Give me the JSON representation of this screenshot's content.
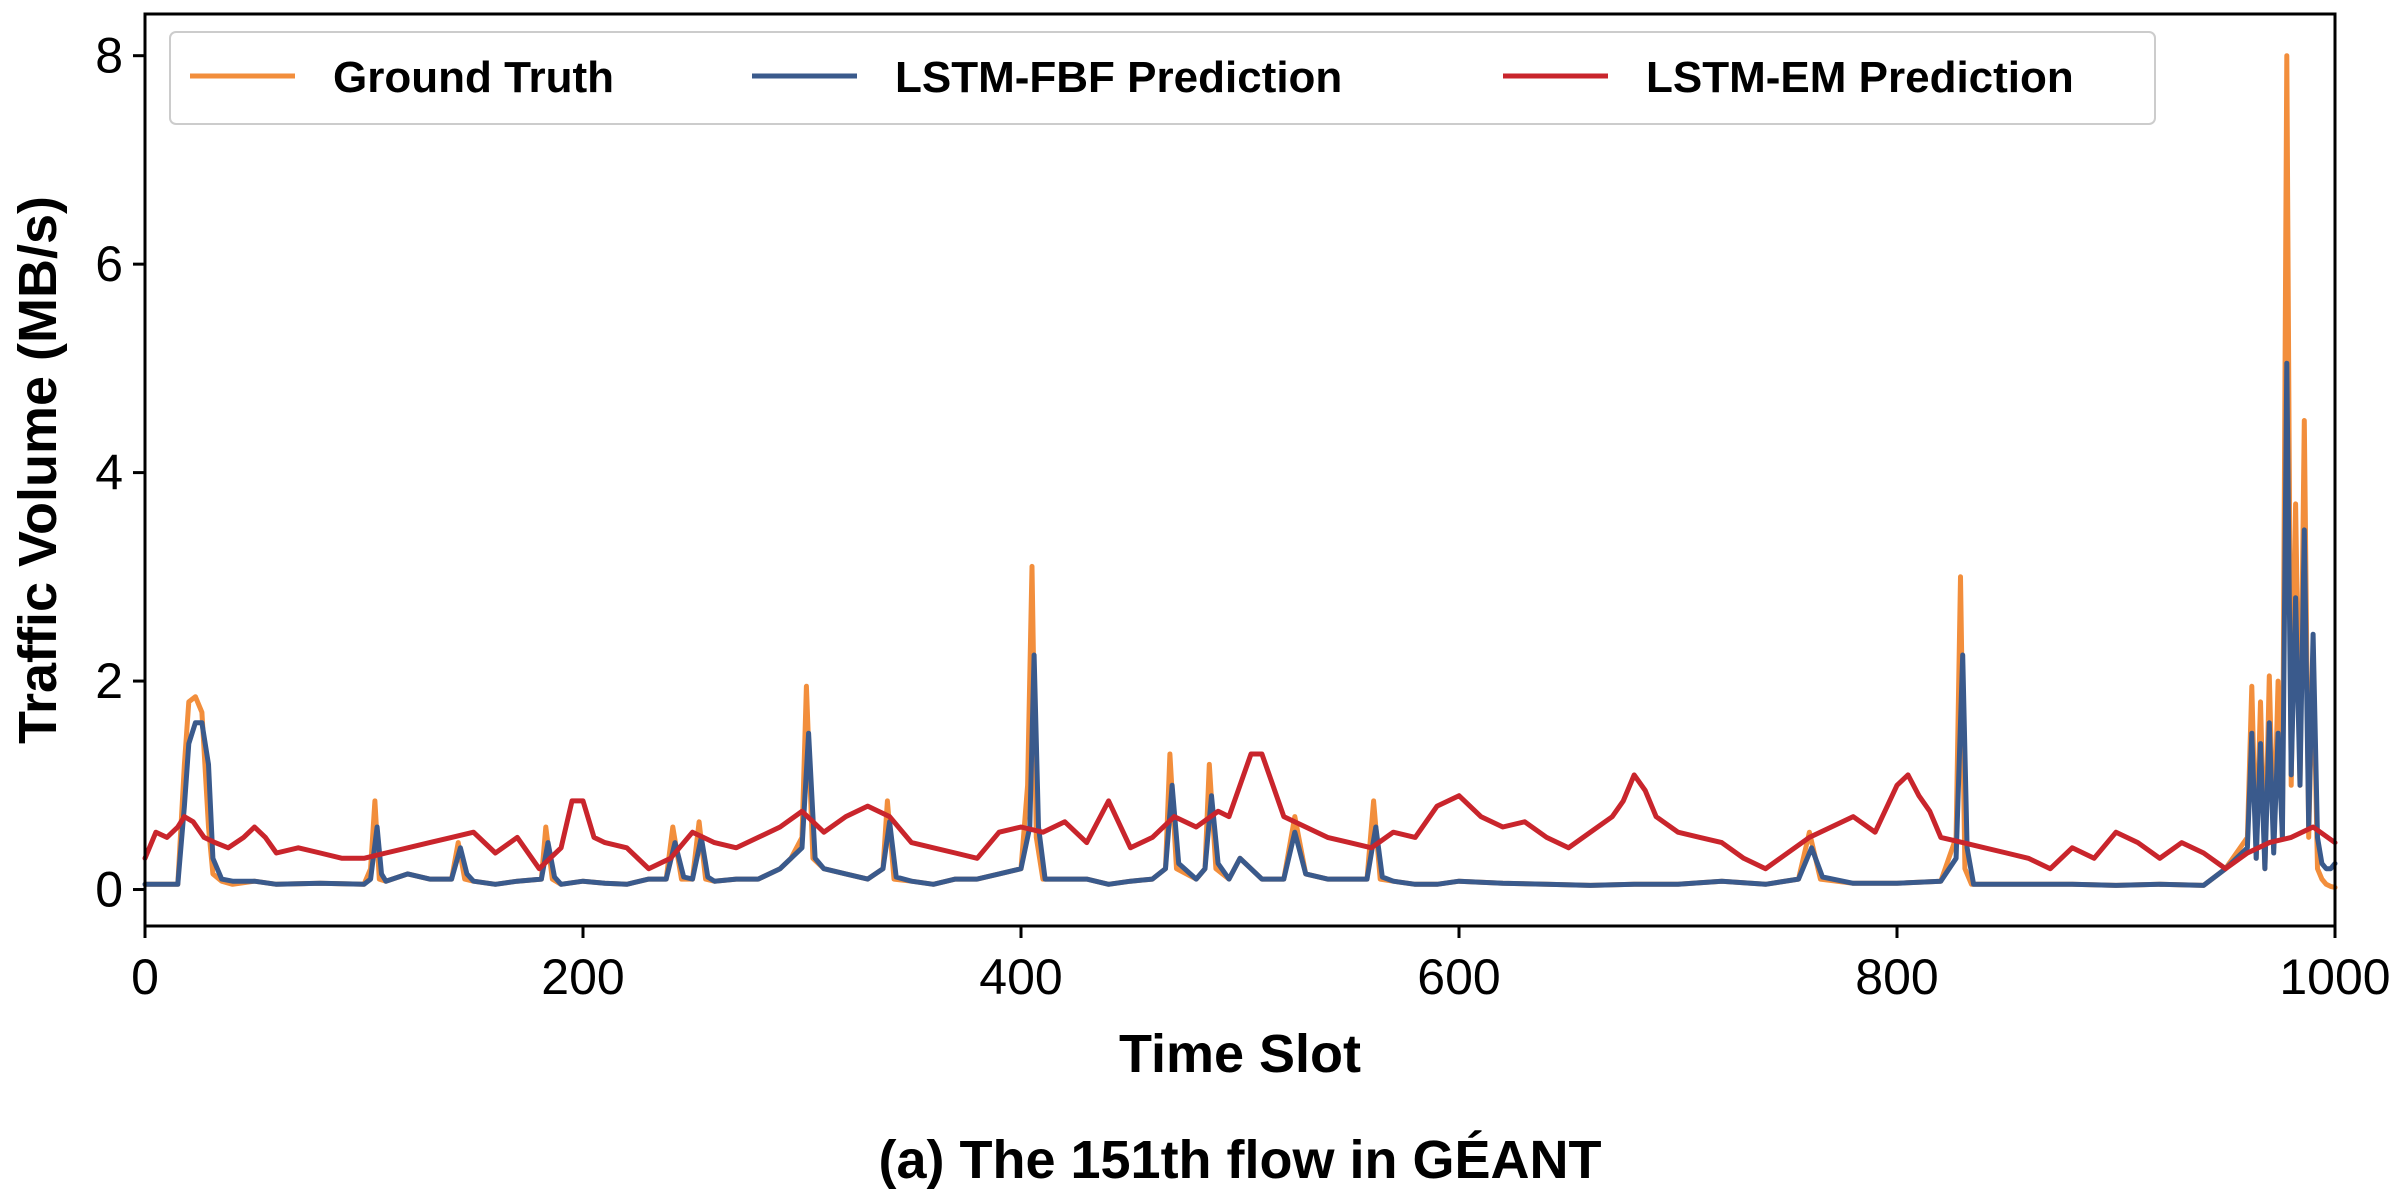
{
  "caption": "(a) The 151th flow in GÉANT",
  "chart_data": {
    "type": "line",
    "xlabel": "Time Slot",
    "ylabel": "Traffic Volume (MB/s)",
    "xlim": [
      0,
      1000
    ],
    "ylim": [
      -0.35,
      8.4
    ],
    "xticks": [
      "0",
      "200",
      "400",
      "600",
      "800",
      "1000"
    ],
    "yticks": [
      "0",
      "2",
      "4",
      "6",
      "8"
    ],
    "grid": false,
    "legend_position": "top",
    "series": [
      {
        "name": "Ground Truth",
        "color": "#f28e3c",
        "x": [
          0,
          15,
          18,
          20,
          23,
          26,
          29,
          31,
          35,
          40,
          50,
          60,
          80,
          100,
          103,
          105,
          107,
          110,
          120,
          130,
          140,
          143,
          146,
          150,
          160,
          170,
          181,
          183,
          186,
          190,
          200,
          210,
          220,
          230,
          238,
          241,
          245,
          250,
          253,
          256,
          260,
          270,
          280,
          290,
          295,
          300,
          302,
          305,
          310,
          320,
          330,
          337,
          339,
          342,
          350,
          360,
          370,
          380,
          390,
          400,
          403,
          405,
          407,
          410,
          415,
          420,
          430,
          440,
          450,
          460,
          466,
          468,
          471,
          480,
          484,
          486,
          489,
          495,
          500,
          510,
          520,
          525,
          530,
          540,
          558,
          561,
          564,
          570,
          580,
          590,
          600,
          620,
          640,
          660,
          680,
          700,
          720,
          740,
          755,
          760,
          765,
          780,
          800,
          820,
          827,
          829,
          831,
          834,
          840,
          850,
          860,
          880,
          900,
          920,
          940,
          950,
          960,
          962,
          964,
          966,
          968,
          970,
          972,
          974,
          976,
          978,
          980,
          982,
          984,
          986,
          988,
          990,
          992,
          994,
          996,
          998,
          1000
        ],
        "y": [
          0.05,
          0.05,
          1.2,
          1.8,
          1.85,
          1.7,
          0.6,
          0.15,
          0.08,
          0.05,
          0.08,
          0.05,
          0.06,
          0.05,
          0.2,
          0.85,
          0.1,
          0.08,
          0.15,
          0.1,
          0.1,
          0.45,
          0.1,
          0.08,
          0.05,
          0.08,
          0.1,
          0.6,
          0.1,
          0.05,
          0.08,
          0.06,
          0.05,
          0.1,
          0.1,
          0.6,
          0.1,
          0.1,
          0.65,
          0.1,
          0.08,
          0.1,
          0.1,
          0.2,
          0.3,
          0.5,
          1.95,
          0.3,
          0.2,
          0.15,
          0.1,
          0.2,
          0.85,
          0.1,
          0.08,
          0.05,
          0.1,
          0.1,
          0.15,
          0.2,
          1.0,
          3.1,
          0.5,
          0.1,
          0.1,
          0.1,
          0.1,
          0.05,
          0.08,
          0.1,
          0.2,
          1.3,
          0.2,
          0.1,
          0.2,
          1.2,
          0.2,
          0.1,
          0.3,
          0.1,
          0.1,
          0.7,
          0.15,
          0.1,
          0.1,
          0.85,
          0.1,
          0.08,
          0.05,
          0.05,
          0.08,
          0.06,
          0.05,
          0.04,
          0.05,
          0.05,
          0.08,
          0.05,
          0.1,
          0.55,
          0.1,
          0.06,
          0.06,
          0.08,
          0.5,
          3.0,
          0.2,
          0.05,
          0.05,
          0.05,
          0.05,
          0.05,
          0.04,
          0.05,
          0.04,
          0.2,
          0.5,
          1.95,
          0.3,
          1.8,
          0.2,
          2.05,
          0.4,
          2.0,
          0.5,
          8.0,
          1.0,
          3.7,
          1.0,
          4.5,
          0.5,
          2.3,
          0.2,
          0.1,
          0.05,
          0.03,
          0.02
        ]
      },
      {
        "name": "LSTM-FBF Prediction",
        "color": "#3a5a8c",
        "x": [
          0,
          15,
          18,
          20,
          23,
          26,
          29,
          31,
          35,
          40,
          50,
          60,
          80,
          100,
          103,
          106,
          108,
          110,
          120,
          130,
          140,
          144,
          147,
          150,
          160,
          170,
          181,
          184,
          187,
          190,
          200,
          210,
          220,
          230,
          238,
          242,
          246,
          250,
          254,
          257,
          260,
          270,
          280,
          290,
          295,
          300,
          303,
          306,
          310,
          320,
          330,
          337,
          340,
          343,
          350,
          360,
          370,
          380,
          390,
          400,
          404,
          406,
          408,
          411,
          415,
          420,
          430,
          440,
          450,
          460,
          466,
          469,
          472,
          480,
          484,
          487,
          490,
          495,
          500,
          510,
          520,
          525,
          530,
          540,
          558,
          562,
          565,
          570,
          580,
          590,
          600,
          620,
          640,
          660,
          680,
          700,
          720,
          740,
          755,
          761,
          766,
          780,
          800,
          820,
          827,
          830,
          832,
          835,
          840,
          850,
          860,
          880,
          900,
          920,
          940,
          950,
          960,
          962,
          964,
          966,
          968,
          970,
          972,
          974,
          976,
          978,
          980,
          982,
          984,
          986,
          988,
          990,
          992,
          994,
          996,
          998,
          1000
        ],
        "y": [
          0.05,
          0.05,
          0.8,
          1.4,
          1.6,
          1.6,
          1.2,
          0.3,
          0.1,
          0.08,
          0.08,
          0.05,
          0.06,
          0.05,
          0.1,
          0.6,
          0.15,
          0.08,
          0.15,
          0.1,
          0.1,
          0.4,
          0.15,
          0.08,
          0.05,
          0.08,
          0.1,
          0.45,
          0.12,
          0.05,
          0.08,
          0.06,
          0.05,
          0.1,
          0.1,
          0.45,
          0.12,
          0.1,
          0.5,
          0.12,
          0.08,
          0.1,
          0.1,
          0.2,
          0.3,
          0.4,
          1.5,
          0.3,
          0.2,
          0.15,
          0.1,
          0.2,
          0.65,
          0.12,
          0.08,
          0.05,
          0.1,
          0.1,
          0.15,
          0.2,
          0.6,
          2.25,
          0.6,
          0.1,
          0.1,
          0.1,
          0.1,
          0.05,
          0.08,
          0.1,
          0.2,
          1.0,
          0.25,
          0.1,
          0.2,
          0.9,
          0.25,
          0.1,
          0.3,
          0.1,
          0.1,
          0.55,
          0.15,
          0.1,
          0.1,
          0.6,
          0.12,
          0.08,
          0.05,
          0.05,
          0.08,
          0.06,
          0.05,
          0.04,
          0.05,
          0.05,
          0.08,
          0.05,
          0.1,
          0.4,
          0.12,
          0.06,
          0.06,
          0.08,
          0.3,
          2.25,
          0.4,
          0.05,
          0.05,
          0.05,
          0.05,
          0.05,
          0.04,
          0.05,
          0.04,
          0.2,
          0.4,
          1.5,
          0.3,
          1.4,
          0.2,
          1.6,
          0.35,
          1.5,
          0.5,
          5.05,
          1.1,
          2.8,
          1.0,
          3.45,
          0.6,
          2.45,
          0.5,
          0.25,
          0.2,
          0.2,
          0.25
        ]
      },
      {
        "name": "LSTM-EM Prediction",
        "color": "#c9252c",
        "x": [
          0,
          5,
          10,
          15,
          18,
          22,
          27,
          32,
          38,
          45,
          50,
          55,
          60,
          70,
          80,
          90,
          100,
          110,
          120,
          130,
          140,
          150,
          160,
          170,
          180,
          190,
          195,
          200,
          205,
          210,
          220,
          230,
          240,
          250,
          260,
          270,
          280,
          290,
          300,
          310,
          320,
          330,
          340,
          350,
          360,
          370,
          380,
          390,
          400,
          410,
          420,
          430,
          440,
          450,
          460,
          470,
          480,
          490,
          495,
          500,
          505,
          510,
          515,
          520,
          530,
          540,
          550,
          560,
          570,
          580,
          590,
          600,
          610,
          620,
          630,
          640,
          650,
          660,
          670,
          675,
          680,
          685,
          690,
          700,
          710,
          720,
          730,
          740,
          750,
          760,
          770,
          780,
          790,
          800,
          805,
          810,
          815,
          820,
          830,
          840,
          850,
          860,
          870,
          880,
          890,
          900,
          910,
          920,
          930,
          940,
          950,
          960,
          970,
          980,
          990,
          1000
        ],
        "y": [
          0.3,
          0.55,
          0.5,
          0.6,
          0.7,
          0.65,
          0.5,
          0.45,
          0.4,
          0.5,
          0.6,
          0.5,
          0.35,
          0.4,
          0.35,
          0.3,
          0.3,
          0.35,
          0.4,
          0.45,
          0.5,
          0.55,
          0.35,
          0.5,
          0.2,
          0.4,
          0.85,
          0.85,
          0.5,
          0.45,
          0.4,
          0.2,
          0.3,
          0.55,
          0.45,
          0.4,
          0.5,
          0.6,
          0.75,
          0.55,
          0.7,
          0.8,
          0.7,
          0.45,
          0.4,
          0.35,
          0.3,
          0.55,
          0.6,
          0.55,
          0.65,
          0.45,
          0.85,
          0.4,
          0.5,
          0.7,
          0.6,
          0.75,
          0.7,
          1.0,
          1.3,
          1.3,
          1.0,
          0.7,
          0.6,
          0.5,
          0.45,
          0.4,
          0.55,
          0.5,
          0.8,
          0.9,
          0.7,
          0.6,
          0.65,
          0.5,
          0.4,
          0.55,
          0.7,
          0.85,
          1.1,
          0.95,
          0.7,
          0.55,
          0.5,
          0.45,
          0.3,
          0.2,
          0.35,
          0.5,
          0.6,
          0.7,
          0.55,
          1.0,
          1.1,
          0.9,
          0.75,
          0.5,
          0.45,
          0.4,
          0.35,
          0.3,
          0.2,
          0.4,
          0.3,
          0.55,
          0.45,
          0.3,
          0.45,
          0.35,
          0.2,
          0.35,
          0.45,
          0.5,
          0.6,
          0.45
        ]
      }
    ]
  }
}
